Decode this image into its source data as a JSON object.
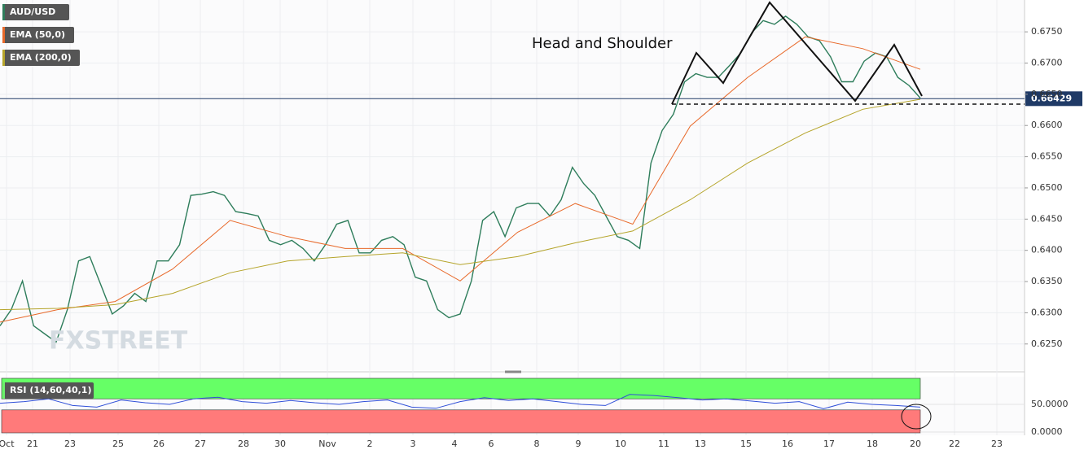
{
  "chart_data": {
    "type": "line",
    "symbol": "AUD/USD",
    "annotation": "Head and Shoulder",
    "watermark": "FXSTREET",
    "current_price": 0.66429,
    "x_labels": [
      "Oct",
      "21",
      "23",
      "25",
      "26",
      "27",
      "28",
      "30",
      "Nov",
      "2",
      "3",
      "4",
      "6",
      "8",
      "9",
      "10",
      "11",
      "13",
      "15",
      "16",
      "17",
      "18",
      "20",
      "22",
      "23"
    ],
    "ylim": [
      0.6208,
      0.6801
    ],
    "yticks": [
      {
        "value": 0.625,
        "label": "0.6250"
      },
      {
        "value": 0.63,
        "label": "0.6300"
      },
      {
        "value": 0.635,
        "label": "0.6350"
      },
      {
        "value": 0.64,
        "label": "0.6400"
      },
      {
        "value": 0.645,
        "label": "0.6450"
      },
      {
        "value": 0.65,
        "label": "0.6500"
      },
      {
        "value": 0.655,
        "label": "0.6550"
      },
      {
        "value": 0.66,
        "label": "0.6600"
      },
      {
        "value": 0.665,
        "label": "0.6650"
      },
      {
        "value": 0.67,
        "label": "0.6700"
      },
      {
        "value": 0.675,
        "label": "0.6750"
      }
    ],
    "series": [
      {
        "name": "AUD/USD",
        "color": "#2e7d5b",
        "values": [
          0.6279,
          0.6305,
          0.6351,
          0.6279,
          0.6266,
          0.6253,
          0.6305,
          0.6383,
          0.639,
          0.6344,
          0.6298,
          0.6311,
          0.6331,
          0.6318,
          0.6383,
          0.6383,
          0.6409,
          0.6488,
          0.649,
          0.6494,
          0.6488,
          0.6462,
          0.6459,
          0.6455,
          0.6416,
          0.6409,
          0.6416,
          0.6403,
          0.6383,
          0.6409,
          0.6442,
          0.6448,
          0.6396,
          0.6396,
          0.6416,
          0.6422,
          0.6409,
          0.6357,
          0.6351,
          0.6305,
          0.6292,
          0.6298,
          0.6351,
          0.6448,
          0.6462,
          0.6422,
          0.6468,
          0.6475,
          0.6475,
          0.6455,
          0.6481,
          0.6533,
          0.6507,
          0.6488,
          0.6455,
          0.6422,
          0.6416,
          0.6403,
          0.654,
          0.6592,
          0.6618,
          0.667,
          0.6683,
          0.6677,
          0.6677,
          0.6696,
          0.6716,
          0.6749,
          0.6768,
          0.6762,
          0.6775,
          0.6762,
          0.6742,
          0.6736,
          0.671,
          0.667,
          0.667,
          0.6703,
          0.6716,
          0.671,
          0.6677,
          0.6664,
          0.6644
        ]
      },
      {
        "name": "EMA (50,0)",
        "color": "#e8692a",
        "values": [
          0.6285,
          0.6305,
          0.6318,
          0.637,
          0.6448,
          0.6422,
          0.6403,
          0.6403,
          0.6351,
          0.6429,
          0.6475,
          0.6442,
          0.6599,
          0.6677,
          0.6742,
          0.6723,
          0.669
        ]
      },
      {
        "name": "EMA (200,0)",
        "color": "#b5a42a",
        "values": [
          0.6305,
          0.6307,
          0.6313,
          0.6331,
          0.6364,
          0.6383,
          0.639,
          0.6396,
          0.6377,
          0.639,
          0.6412,
          0.6431,
          0.6481,
          0.654,
          0.6588,
          0.6626,
          0.6642
        ]
      }
    ],
    "rsi": {
      "name": "RSI (14,60,40,1)",
      "color": "#2f4fd8",
      "ylim": [
        0,
        100
      ],
      "yticks": [
        {
          "value": 0,
          "label": "0.0000"
        },
        {
          "value": 50,
          "label": "50.0000"
        }
      ],
      "upper": 60,
      "lower": 40,
      "values": [
        52,
        55,
        60,
        48,
        45,
        58,
        53,
        50,
        60,
        63,
        55,
        52,
        57,
        53,
        50,
        55,
        58,
        45,
        43,
        55,
        62,
        57,
        60,
        55,
        50,
        48,
        68,
        66,
        62,
        58,
        60,
        56,
        52,
        55,
        42,
        54,
        50,
        48,
        45
      ]
    }
  }
}
